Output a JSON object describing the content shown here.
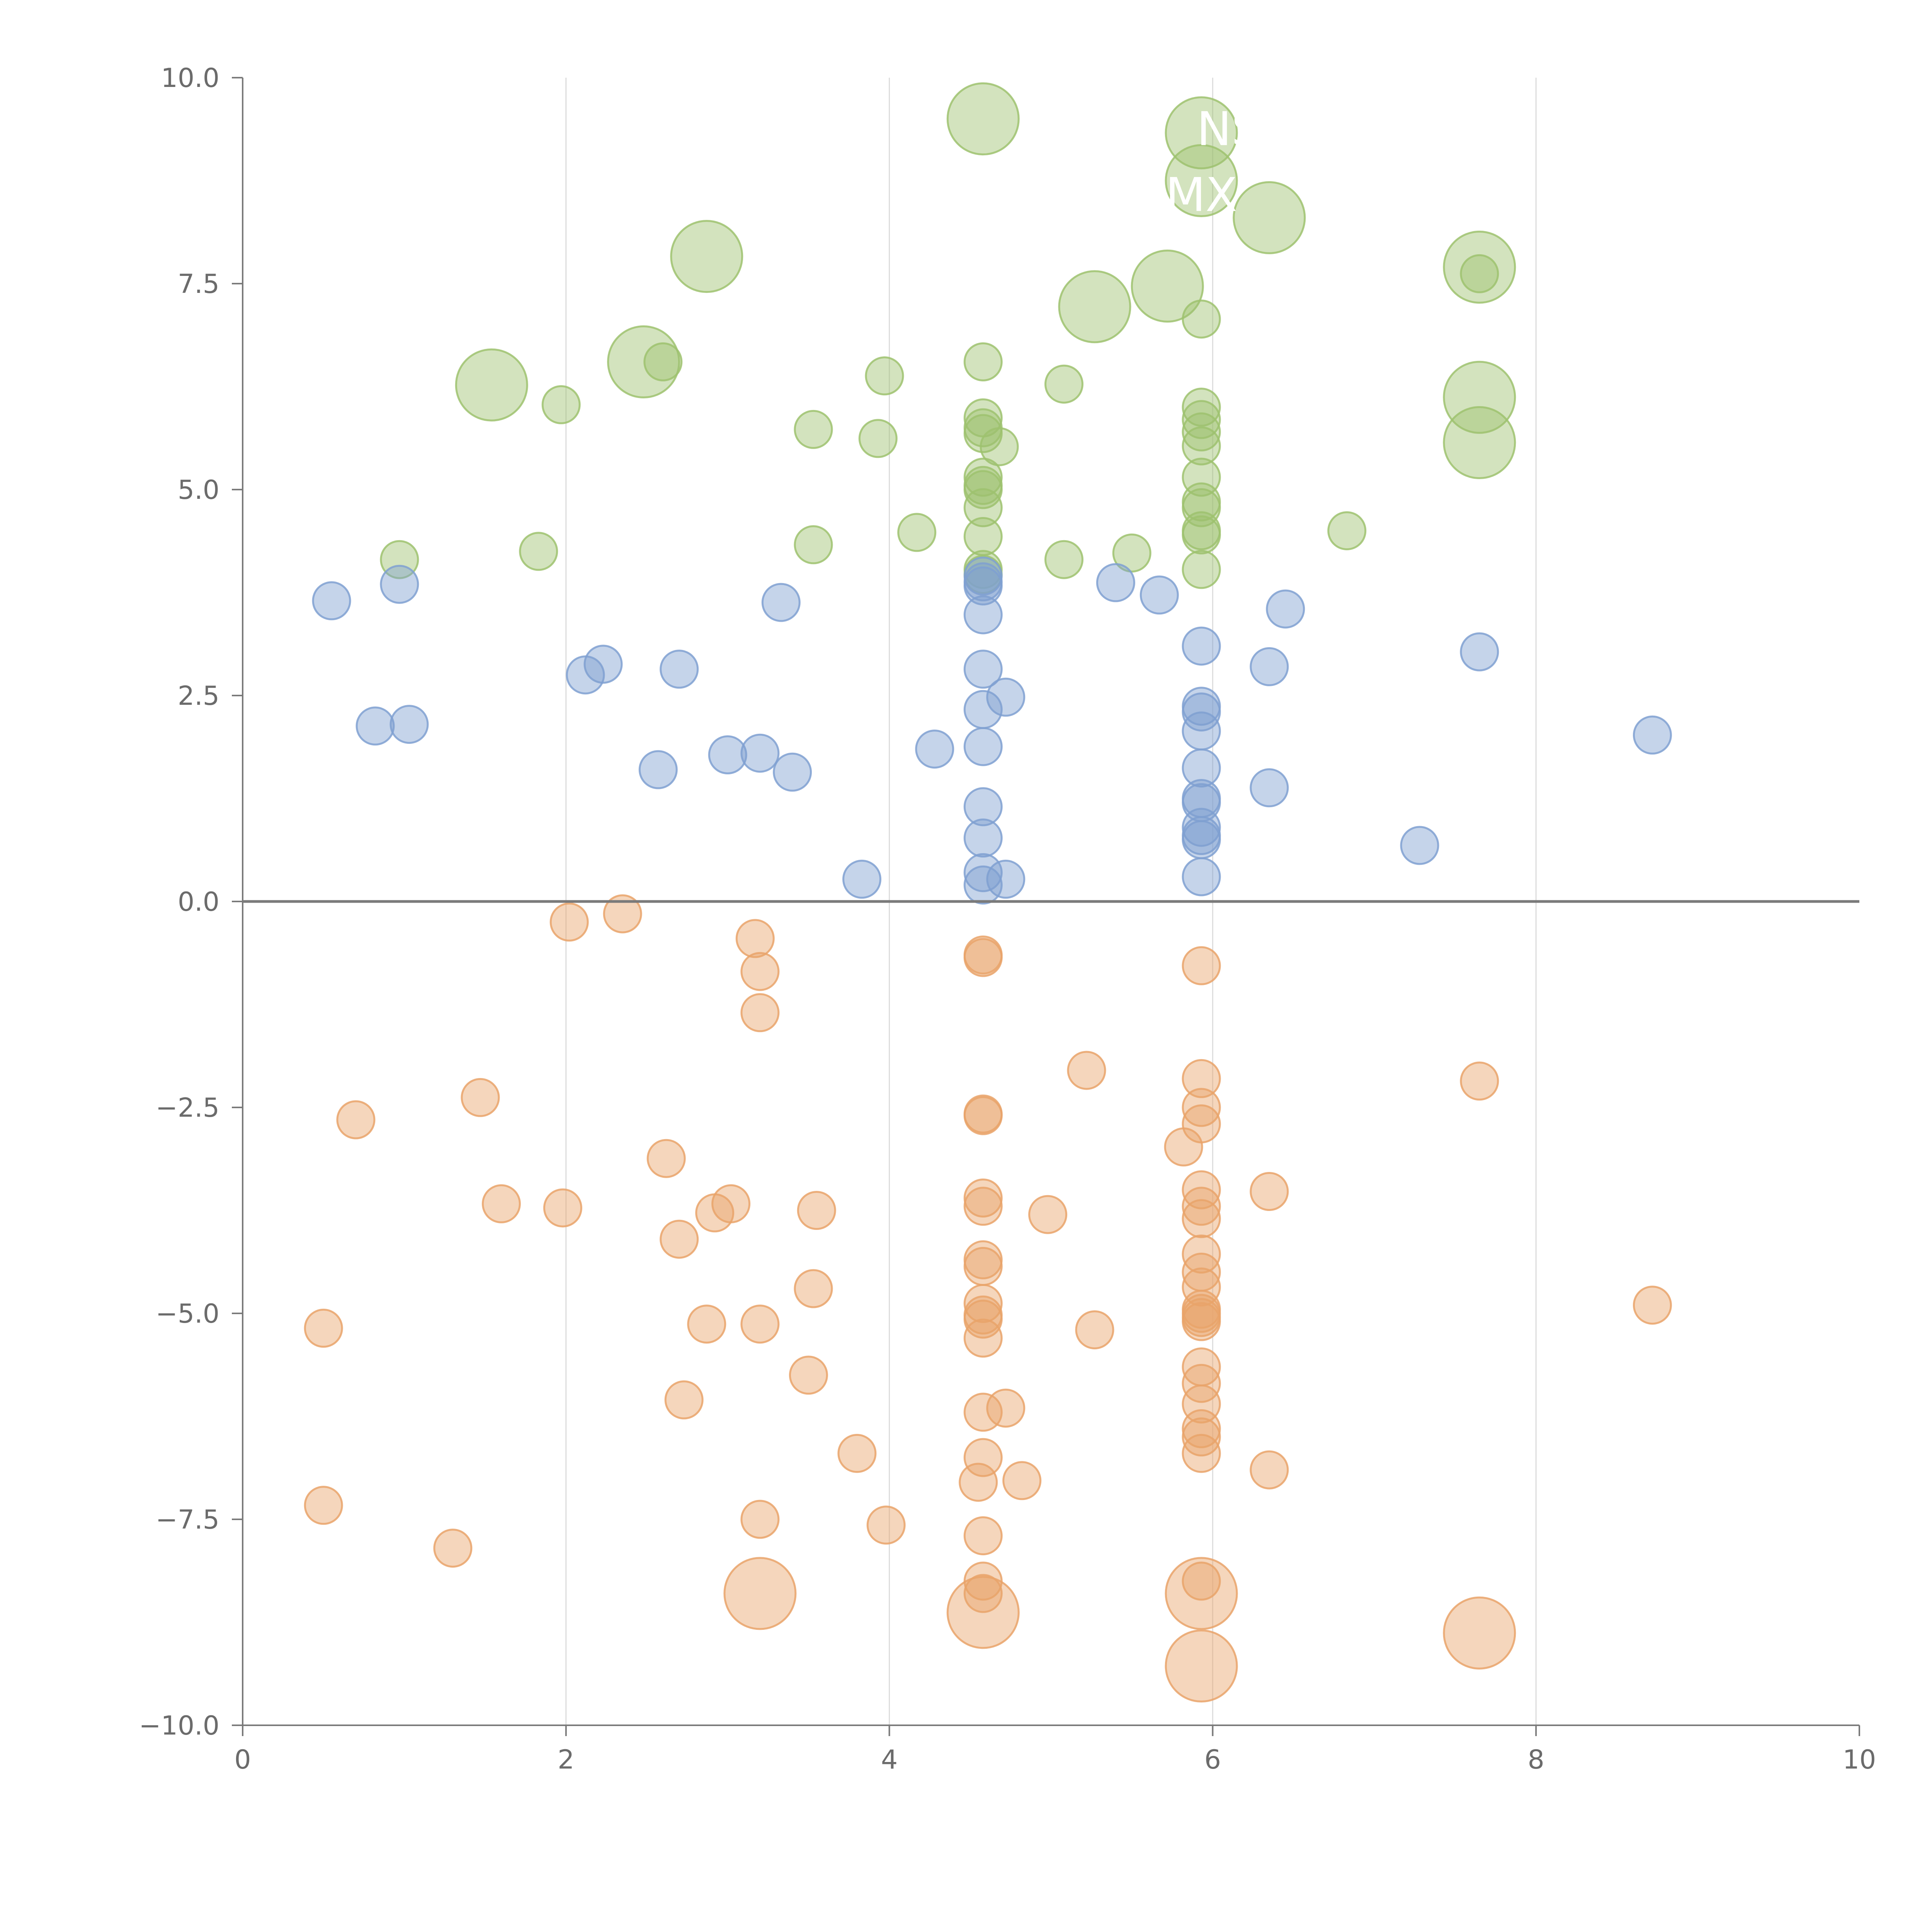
{
  "chart_data": {
    "type": "scatter",
    "title": "",
    "xlabel": "",
    "ylabel": "",
    "xlim": [
      0,
      10
    ],
    "ylim": [
      -10,
      10
    ],
    "x_ticks": [
      0,
      2,
      4,
      6,
      8,
      10
    ],
    "x_tick_labels": [
      "0",
      "2",
      "4",
      "6",
      "8",
      "10"
    ],
    "y_ticks": [
      10,
      7.5,
      5,
      2.5,
      0,
      -2.5,
      -5,
      -7.5,
      -10
    ],
    "y_tick_labels": [
      "10.0",
      "7.5",
      "5.0",
      "2.5",
      "0.0",
      "−2.5",
      "−5.0",
      "−7.5",
      "−10.0"
    ],
    "grid": "vertical",
    "reference_line_y": 0,
    "series": [
      {
        "name": "green",
        "color": "#9ec26e",
        "points": [
          [
            4.58,
            9.5,
            "big"
          ],
          [
            5.93,
            9.33,
            "big"
          ],
          [
            5.93,
            8.75,
            "big"
          ],
          [
            6.35,
            8.3,
            "big"
          ],
          [
            2.87,
            7.83,
            "big"
          ],
          [
            7.65,
            7.7,
            "big"
          ],
          [
            7.65,
            7.62
          ],
          [
            5.72,
            7.47,
            "big"
          ],
          [
            5.27,
            7.22,
            "big"
          ],
          [
            5.93,
            7.07
          ],
          [
            2.48,
            6.55,
            "big"
          ],
          [
            2.6,
            6.55
          ],
          [
            4.58,
            6.55
          ],
          [
            3.97,
            6.38
          ],
          [
            5.08,
            6.28
          ],
          [
            1.54,
            6.27,
            "big"
          ],
          [
            1.97,
            6.03
          ],
          [
            7.65,
            6.12,
            "big"
          ],
          [
            5.93,
            6.0
          ],
          [
            4.58,
            5.87
          ],
          [
            5.93,
            5.85
          ],
          [
            4.58,
            5.75
          ],
          [
            3.53,
            5.73
          ],
          [
            5.93,
            5.7
          ],
          [
            4.58,
            5.68
          ],
          [
            3.93,
            5.62
          ],
          [
            7.65,
            5.57,
            "big"
          ],
          [
            4.68,
            5.52
          ],
          [
            5.93,
            5.53
          ],
          [
            4.58,
            5.15
          ],
          [
            5.93,
            5.15
          ],
          [
            4.58,
            5.05
          ],
          [
            4.58,
            5.0
          ],
          [
            5.93,
            4.85
          ],
          [
            5.93,
            4.78
          ],
          [
            4.58,
            4.78
          ],
          [
            6.83,
            4.5
          ],
          [
            4.17,
            4.48
          ],
          [
            5.93,
            4.5
          ],
          [
            5.93,
            4.45
          ],
          [
            4.58,
            4.43
          ],
          [
            3.53,
            4.33
          ],
          [
            1.83,
            4.25
          ],
          [
            5.5,
            4.23
          ],
          [
            0.97,
            4.15
          ],
          [
            5.08,
            4.15
          ],
          [
            5.93,
            4.03
          ],
          [
            4.58,
            4.03
          ],
          [
            4.58,
            3.97
          ]
        ]
      },
      {
        "name": "blue",
        "color": "#7fa0d1",
        "points": [
          [
            4.58,
            3.95
          ],
          [
            4.58,
            3.88
          ],
          [
            4.58,
            3.83
          ],
          [
            5.4,
            3.87
          ],
          [
            0.97,
            3.85
          ],
          [
            5.67,
            3.72
          ],
          [
            0.55,
            3.65
          ],
          [
            3.33,
            3.63
          ],
          [
            6.45,
            3.55
          ],
          [
            4.58,
            3.48
          ],
          [
            5.93,
            3.1
          ],
          [
            7.65,
            3.03
          ],
          [
            2.23,
            2.88
          ],
          [
            6.35,
            2.85
          ],
          [
            2.7,
            2.82
          ],
          [
            4.58,
            2.82
          ],
          [
            2.12,
            2.75
          ],
          [
            4.72,
            2.48
          ],
          [
            5.93,
            2.37
          ],
          [
            4.58,
            2.33
          ],
          [
            5.93,
            2.3
          ],
          [
            1.03,
            2.15
          ],
          [
            0.82,
            2.13
          ],
          [
            5.93,
            2.07
          ],
          [
            8.72,
            2.02
          ],
          [
            4.58,
            1.88
          ],
          [
            4.28,
            1.85
          ],
          [
            3.0,
            1.78
          ],
          [
            3.2,
            1.8
          ],
          [
            5.93,
            1.62
          ],
          [
            2.57,
            1.6
          ],
          [
            3.4,
            1.57
          ],
          [
            6.35,
            1.38
          ],
          [
            5.93,
            1.25
          ],
          [
            5.93,
            1.2
          ],
          [
            4.58,
            1.15
          ],
          [
            5.93,
            0.9
          ],
          [
            5.93,
            0.8
          ],
          [
            4.58,
            0.77
          ],
          [
            5.93,
            0.75
          ],
          [
            7.28,
            0.68
          ],
          [
            4.58,
            0.35
          ],
          [
            5.93,
            0.3
          ],
          [
            3.83,
            0.27
          ],
          [
            4.72,
            0.27
          ],
          [
            4.58,
            0.2
          ]
        ]
      },
      {
        "name": "orange",
        "color": "#e9a36a",
        "points": [
          [
            2.35,
            -0.15
          ],
          [
            2.02,
            -0.25
          ],
          [
            3.17,
            -0.45
          ],
          [
            4.58,
            -0.65
          ],
          [
            4.58,
            -0.68
          ],
          [
            5.93,
            -0.78
          ],
          [
            3.2,
            -0.85
          ],
          [
            3.2,
            -1.35
          ],
          [
            5.22,
            -2.05
          ],
          [
            5.93,
            -2.15
          ],
          [
            7.65,
            -2.18
          ],
          [
            1.47,
            -2.38
          ],
          [
            5.93,
            -2.5
          ],
          [
            4.58,
            -2.58
          ],
          [
            4.58,
            -2.6
          ],
          [
            0.7,
            -2.65
          ],
          [
            5.93,
            -2.7
          ],
          [
            5.82,
            -2.98
          ],
          [
            2.62,
            -3.12
          ],
          [
            5.93,
            -3.5
          ],
          [
            6.35,
            -3.52
          ],
          [
            4.58,
            -3.6
          ],
          [
            1.6,
            -3.67
          ],
          [
            3.02,
            -3.67
          ],
          [
            4.58,
            -3.7
          ],
          [
            5.93,
            -3.7
          ],
          [
            1.98,
            -3.72
          ],
          [
            3.55,
            -3.75
          ],
          [
            2.92,
            -3.78
          ],
          [
            4.98,
            -3.8
          ],
          [
            5.93,
            -3.85
          ],
          [
            2.7,
            -4.1
          ],
          [
            5.93,
            -4.28
          ],
          [
            4.58,
            -4.35
          ],
          [
            4.58,
            -4.43
          ],
          [
            5.93,
            -4.5
          ],
          [
            5.93,
            -4.68
          ],
          [
            3.53,
            -4.7
          ],
          [
            4.58,
            -4.88
          ],
          [
            8.72,
            -4.9
          ],
          [
            5.93,
            -4.95
          ],
          [
            5.93,
            -5.0
          ],
          [
            4.58,
            -5.02
          ],
          [
            5.93,
            -5.05
          ],
          [
            4.58,
            -5.07
          ],
          [
            5.93,
            -5.1
          ],
          [
            2.87,
            -5.13
          ],
          [
            3.2,
            -5.13
          ],
          [
            0.5,
            -5.18
          ],
          [
            5.27,
            -5.2
          ],
          [
            4.58,
            -5.3
          ],
          [
            5.93,
            -5.65
          ],
          [
            3.5,
            -5.75
          ],
          [
            5.93,
            -5.85
          ],
          [
            2.73,
            -6.05
          ],
          [
            5.93,
            -6.1
          ],
          [
            4.72,
            -6.15
          ],
          [
            4.58,
            -6.2
          ],
          [
            5.93,
            -6.4
          ],
          [
            5.93,
            -6.5
          ],
          [
            5.93,
            -6.7
          ],
          [
            3.8,
            -6.7
          ],
          [
            4.58,
            -6.75
          ],
          [
            6.35,
            -6.9
          ],
          [
            4.82,
            -7.03
          ],
          [
            4.55,
            -7.05
          ],
          [
            0.5,
            -7.33
          ],
          [
            3.2,
            -7.5
          ],
          [
            3.98,
            -7.57
          ],
          [
            4.58,
            -7.7
          ],
          [
            1.3,
            -7.85
          ],
          [
            4.58,
            -8.25
          ],
          [
            4.58,
            -8.4
          ],
          [
            5.93,
            -8.25
          ],
          [
            3.2,
            -8.4,
            "big"
          ],
          [
            5.93,
            -8.4,
            "big"
          ],
          [
            4.58,
            -8.63,
            "big"
          ],
          [
            7.65,
            -8.88,
            "big"
          ],
          [
            5.93,
            -9.28,
            "big"
          ]
        ]
      }
    ],
    "annotations": [
      {
        "text": "NS",
        "x": 6.1,
        "y": 9.37
      },
      {
        "text": "MX",
        "x": 5.93,
        "y": 8.57
      }
    ]
  }
}
